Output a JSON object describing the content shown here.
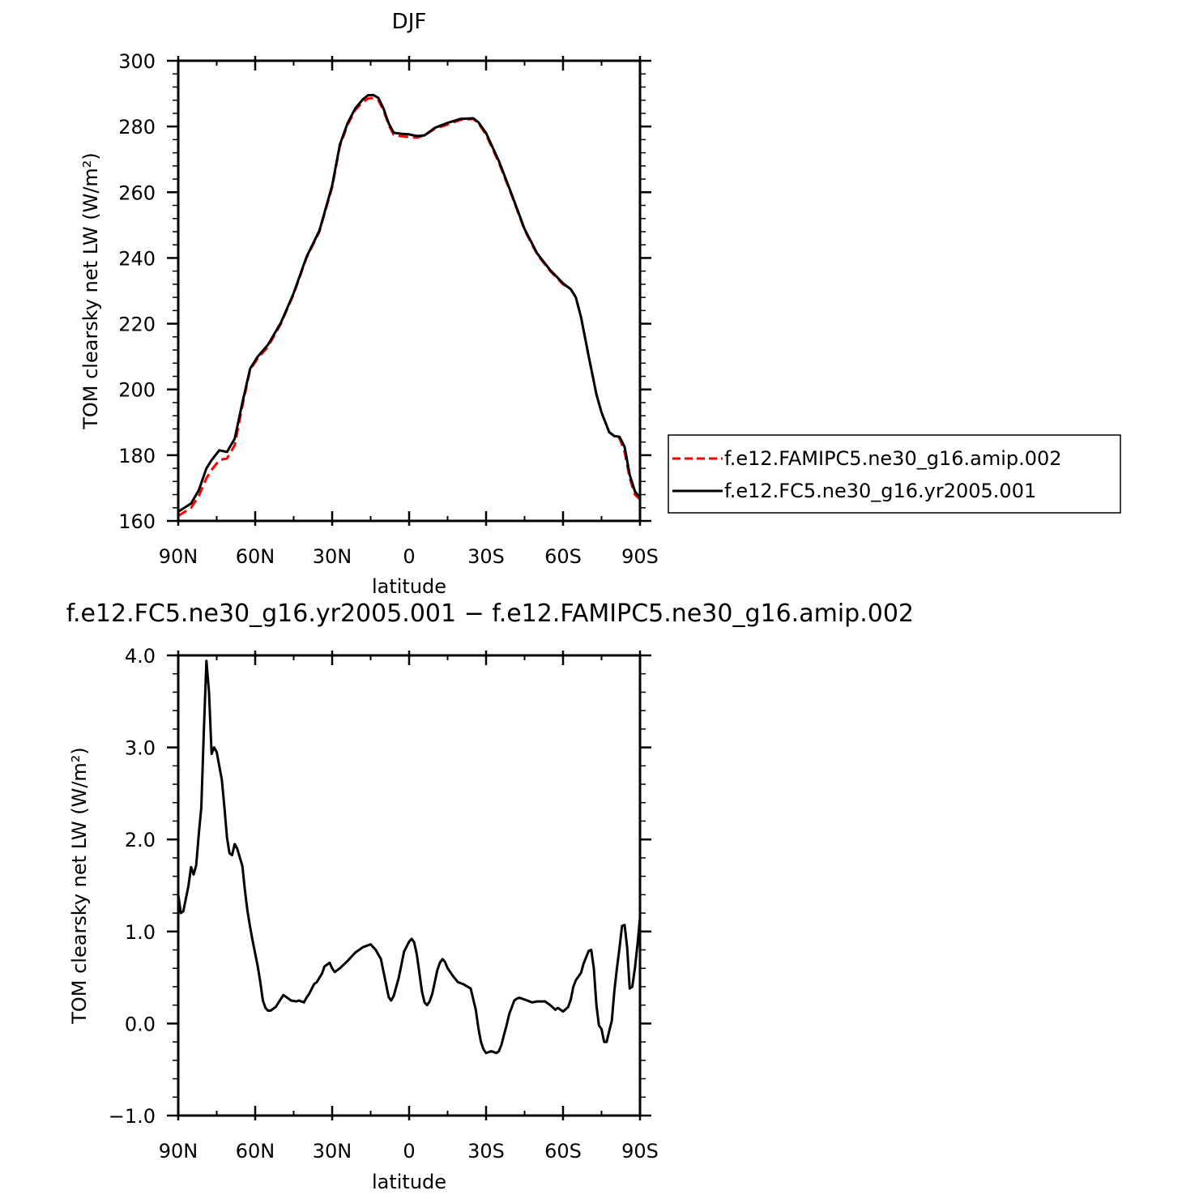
{
  "chart_data": [
    {
      "type": "line",
      "title": "DJF",
      "xlabel": "latitude",
      "ylabel": "TOM clearsky net LW (W/m²)",
      "xlim": [
        -90,
        90
      ],
      "ylim": [
        160,
        300
      ],
      "x_direction": "90N at left, 90S at right",
      "xticks": [
        -90,
        -60,
        -30,
        0,
        30,
        60,
        90
      ],
      "xtick_labels": [
        "90N",
        "60N",
        "30N",
        "0",
        "30S",
        "60S",
        "90S"
      ],
      "yticks": [
        160,
        180,
        200,
        220,
        240,
        260,
        280,
        300
      ],
      "ytick_labels": [
        "160",
        "180",
        "200",
        "220",
        "240",
        "260",
        "280",
        "300"
      ],
      "legend_position": "right, outside",
      "series": [
        {
          "name": "f.e12.FAMIPC5.ne30_g16.amip.002",
          "color": "#ff0000",
          "dash": "dashed",
          "x": [
            -90,
            -85,
            -82,
            -79,
            -77,
            -74,
            -71,
            -68,
            -65,
            -62,
            -59,
            -55,
            -50,
            -45,
            -40,
            -35,
            -30,
            -27,
            -24,
            -21,
            -18,
            -16,
            -14,
            -12,
            -10,
            -8,
            -6,
            -3,
            0,
            3,
            6,
            10,
            15,
            20,
            25,
            27,
            30,
            35,
            40,
            45,
            50,
            55,
            60,
            63,
            65,
            67,
            70,
            73,
            75,
            77,
            78,
            80,
            82,
            84,
            86,
            88,
            90
          ],
          "y": [
            161.5,
            164,
            167.5,
            173,
            175.5,
            178.5,
            179,
            183,
            195,
            206,
            209.5,
            213,
            220,
            229,
            240,
            248,
            261.5,
            274,
            280.5,
            285,
            287.5,
            288.5,
            288.7,
            288,
            285,
            280.5,
            277.5,
            277,
            276.8,
            276.6,
            277.3,
            279.3,
            280.6,
            282,
            282.3,
            281,
            277.5,
            269,
            259,
            248.5,
            241,
            236,
            232,
            230.5,
            228,
            222,
            210,
            198.5,
            193,
            189,
            187,
            185.8,
            185.2,
            181,
            173,
            168,
            166.5
          ]
        },
        {
          "name": "f.e12.FC5.ne30_g16.yr2005.001",
          "color": "#000000",
          "dash": "solid",
          "x": [
            -90,
            -85,
            -82,
            -79,
            -77,
            -74,
            -71,
            -68,
            -65,
            -62,
            -59,
            -55,
            -50,
            -45,
            -40,
            -35,
            -30,
            -27,
            -24,
            -21,
            -18,
            -16,
            -14,
            -12,
            -10,
            -8,
            -6,
            -3,
            0,
            3,
            6,
            10,
            15,
            20,
            25,
            27,
            30,
            35,
            40,
            45,
            50,
            55,
            60,
            63,
            65,
            67,
            70,
            73,
            75,
            77,
            78,
            80,
            82,
            84,
            86,
            88,
            90
          ],
          "y": [
            162.8,
            165.3,
            169.3,
            176,
            178.5,
            181.5,
            181,
            185,
            196,
            206.3,
            210,
            213.6,
            220.3,
            229.3,
            240.3,
            248.3,
            262,
            274.5,
            281,
            285.5,
            288.3,
            289.5,
            289.6,
            288.7,
            285.5,
            281,
            278.1,
            277.8,
            277.6,
            277.1,
            277.3,
            279.6,
            281.1,
            282.3,
            282.5,
            281.3,
            278,
            269.5,
            259.3,
            248.8,
            241.3,
            236.3,
            232.3,
            230.5,
            228,
            222,
            210,
            198.5,
            193,
            189,
            187,
            185.8,
            185.6,
            182.5,
            174,
            169,
            167
          ]
        }
      ]
    },
    {
      "type": "line",
      "title": "f.e12.FC5.ne30_g16.yr2005.001 − f.e12.FAMIPC5.ne30_g16.amip.002",
      "xlabel": "latitude",
      "ylabel": "TOM clearsky net LW (W/m²)",
      "xlim": [
        -90,
        90
      ],
      "ylim": [
        -1.0,
        4.0
      ],
      "xticks": [
        -90,
        -60,
        -30,
        0,
        30,
        60,
        90
      ],
      "xtick_labels": [
        "90N",
        "60N",
        "30N",
        "0",
        "30S",
        "60S",
        "90S"
      ],
      "yticks": [
        -1.0,
        0.0,
        1.0,
        2.0,
        3.0,
        4.0
      ],
      "ytick_labels": [
        "−1.0",
        "0.0",
        "1.0",
        "2.0",
        "3.0",
        "4.0"
      ],
      "series": [
        {
          "color": "#000000",
          "dash": "solid",
          "x": [
            -90,
            -89,
            -88,
            -86,
            -85,
            -84,
            -83,
            -82,
            -81,
            -80,
            -79,
            -78,
            -77,
            -76,
            -75,
            -73,
            -72,
            -71,
            -70,
            -69,
            -68,
            -67,
            -65,
            -64,
            -63,
            -62,
            -61,
            -59,
            -58,
            -57,
            -56,
            -55,
            -54,
            -52,
            -49,
            -47,
            -46,
            -44,
            -43,
            -41,
            -40,
            -39,
            -37,
            -36,
            -34,
            -33,
            -31,
            -30,
            -29,
            -27,
            -24,
            -21,
            -18,
            -15,
            -13,
            -11,
            -9,
            -8,
            -7,
            -6,
            -4,
            -2,
            0,
            1,
            2,
            3,
            4,
            5,
            6,
            7,
            8,
            9,
            10,
            11,
            12,
            13,
            14,
            15,
            17,
            19,
            21,
            24,
            26,
            27,
            28,
            29,
            30,
            31,
            32,
            33,
            34,
            35,
            36,
            37,
            38,
            39,
            41,
            42,
            43,
            44,
            46,
            48,
            50,
            53,
            55,
            57,
            58,
            60,
            62,
            63,
            64,
            65,
            67,
            68,
            70,
            71,
            72,
            73,
            74,
            75,
            76,
            77,
            78,
            79,
            80,
            81,
            82,
            83,
            84,
            85,
            86,
            87,
            88,
            89,
            90
          ],
          "y": [
            1.4,
            1.2,
            1.22,
            1.5,
            1.7,
            1.62,
            1.72,
            2.05,
            2.35,
            3.2,
            3.94,
            3.6,
            2.93,
            3.0,
            2.95,
            2.65,
            2.35,
            2.02,
            1.85,
            1.83,
            1.95,
            1.9,
            1.71,
            1.45,
            1.22,
            1.05,
            0.9,
            0.62,
            0.45,
            0.25,
            0.17,
            0.14,
            0.14,
            0.18,
            0.31,
            0.27,
            0.25,
            0.24,
            0.25,
            0.23,
            0.28,
            0.32,
            0.43,
            0.45,
            0.54,
            0.62,
            0.66,
            0.6,
            0.56,
            0.6,
            0.68,
            0.77,
            0.83,
            0.86,
            0.8,
            0.7,
            0.43,
            0.29,
            0.25,
            0.3,
            0.5,
            0.78,
            0.89,
            0.92,
            0.88,
            0.75,
            0.55,
            0.35,
            0.23,
            0.2,
            0.24,
            0.32,
            0.45,
            0.58,
            0.66,
            0.7,
            0.67,
            0.6,
            0.52,
            0.45,
            0.43,
            0.38,
            0.15,
            -0.05,
            -0.2,
            -0.28,
            -0.32,
            -0.31,
            -0.3,
            -0.31,
            -0.32,
            -0.3,
            -0.23,
            -0.12,
            -0.02,
            0.1,
            0.25,
            0.27,
            0.28,
            0.27,
            0.25,
            0.23,
            0.24,
            0.24,
            0.2,
            0.15,
            0.17,
            0.13,
            0.18,
            0.26,
            0.4,
            0.47,
            0.55,
            0.65,
            0.79,
            0.8,
            0.6,
            0.2,
            -0.02,
            -0.06,
            -0.2,
            -0.2,
            -0.08,
            0.03,
            0.35,
            0.6,
            0.82,
            1.06,
            1.07,
            0.82,
            0.38,
            0.4,
            0.6,
            0.85,
            1.15
          ]
        }
      ]
    }
  ]
}
